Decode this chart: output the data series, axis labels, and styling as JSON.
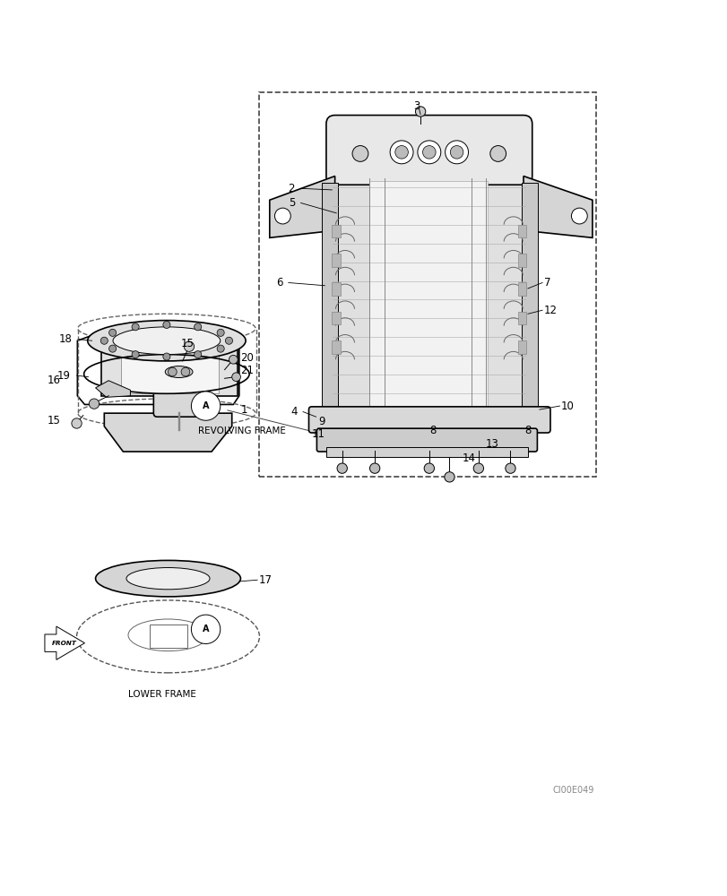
{
  "bg_color": "#ffffff",
  "line_color": "#000000",
  "fig_width": 8.12,
  "fig_height": 10.0,
  "dpi": 100,
  "watermark": "CI00E049",
  "label_revolving": "REVOLVING FRAME",
  "label_lower": "LOWER FRAME",
  "label_front": "FRONT"
}
